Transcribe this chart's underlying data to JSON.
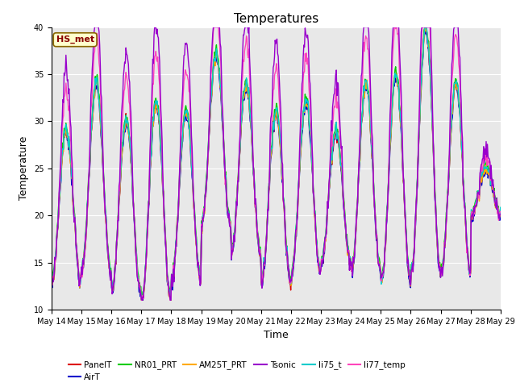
{
  "title": "Temperatures",
  "xlabel": "Time",
  "ylabel": "Temperature",
  "ylim": [
    10,
    40
  ],
  "annotation_text": "HS_met",
  "annotation_bg": "#ffffcc",
  "annotation_border": "#886600",
  "annotation_text_color": "#880000",
  "plot_bg_color": "#e8e8e8",
  "series_colors": {
    "PanelT": "#dd0000",
    "AirT": "#0000cc",
    "NR01_PRT": "#00cc00",
    "AM25T_PRT": "#ffaa00",
    "Tsonic": "#9900cc",
    "li75_t": "#00cccc",
    "li77_temp": "#ff44bb"
  },
  "x_tick_labels": [
    "May 14",
    "May 15",
    "May 16",
    "May 17",
    "May 18",
    "May 19",
    "May 20",
    "May 21",
    "May 22",
    "May 23",
    "May 24",
    "May 25",
    "May 26",
    "May 27",
    "May 28",
    "May 29"
  ],
  "yticks": [
    10,
    15,
    20,
    25,
    30,
    35,
    40
  ],
  "n_days": 15,
  "samples_per_day": 48,
  "figsize": [
    6.4,
    4.8
  ],
  "dpi": 100
}
